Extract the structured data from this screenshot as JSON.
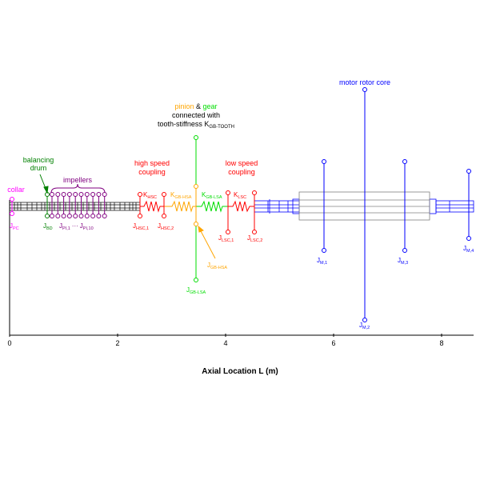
{
  "colors": {
    "black": "#000000",
    "magenta": "#ff00ff",
    "green_dark": "#008000",
    "purple": "#800080",
    "red": "#ff0000",
    "orange": "#ffa500",
    "green": "#00dd00",
    "blue": "#0000ff",
    "gray": "#808080"
  },
  "annotations": {
    "collar": "collar",
    "balancing_drum_1": "balancing",
    "balancing_drum_2": "drum",
    "impellers": "impellers",
    "hsc_1": "high speed",
    "hsc_2": "coupling",
    "lsc_1": "low speed",
    "lsc_2": "coupling",
    "pinion": "pinion",
    "amp": "&",
    "gear": "gear",
    "connected": "connected with",
    "tooth": "tooth-stiffness K",
    "tooth_sub": "GB-TOOTH",
    "motor": "motor rotor core"
  },
  "labels": {
    "j": "J",
    "k": "K",
    "pc": "PC",
    "bd": "BD",
    "pi1": "PI,1",
    "dots": "···",
    "pi10": "PI,10",
    "hsc1": "HSC,1",
    "hsc2": "HSC,2",
    "khsc": "HSC",
    "kgbhsa": "GB-HSA",
    "kgblsa": "GB-LSA",
    "klsc": "LSC",
    "lsc1": "LSC,1",
    "lsc2": "LSC,2",
    "gbhsa": "GB-HSA",
    "gblsa": "GB-LSA",
    "m1": "M,1",
    "m2": "M,2",
    "m3": "M,3",
    "m4": "M,4"
  },
  "axis": {
    "xlabel": "Axial Location L (m)",
    "ticks": [
      "0",
      "2",
      "4",
      "6",
      "8"
    ]
  }
}
